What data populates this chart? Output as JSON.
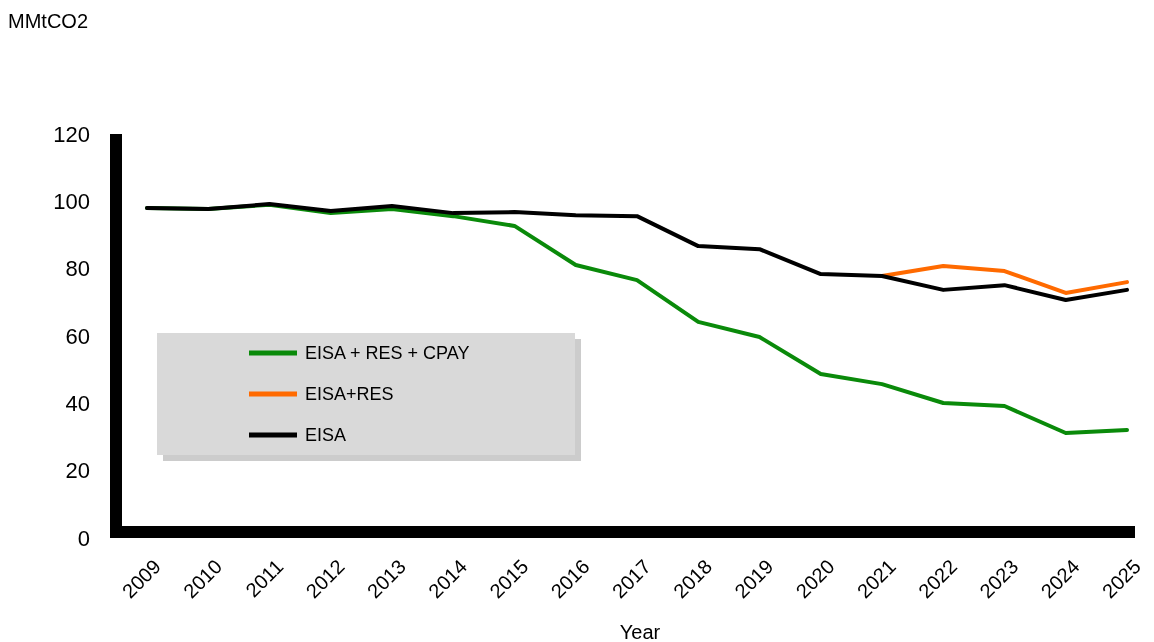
{
  "chart_data": {
    "type": "line",
    "ylabel": "MMtCO2",
    "xlabel": "Year",
    "categories": [
      "2009",
      "2010",
      "2011",
      "2012",
      "2013",
      "2014",
      "2015",
      "2016",
      "2017",
      "2018",
      "2019",
      "2020",
      "2021",
      "2022",
      "2023",
      "2024",
      "2025"
    ],
    "ylim": [
      0,
      120
    ],
    "yticks": [
      0,
      20,
      40,
      60,
      80,
      100,
      120
    ],
    "grid": false,
    "legend": "bottom left",
    "marker": "none",
    "line_style": "solid",
    "series": [
      {
        "name": "EISA + RES + CPAY",
        "color": "#0a8a0a",
        "values": [
          98,
          97.7,
          99,
          96.5,
          97.7,
          95.6,
          92.7,
          81.1,
          76.6,
          64.2,
          59.7,
          48.7,
          45.7,
          40.1,
          39.2,
          31.2,
          32.1
        ]
      },
      {
        "name": "EISA+RES",
        "color": "#ff6a00",
        "values": [
          null,
          null,
          null,
          null,
          null,
          null,
          null,
          null,
          null,
          null,
          null,
          null,
          77.8,
          80.8,
          79.3,
          72.8,
          76.0
        ]
      },
      {
        "name": "EISA",
        "color": "#000000",
        "values": [
          98,
          97.7,
          99.2,
          97.1,
          98.6,
          96.5,
          96.8,
          95.9,
          95.6,
          86.7,
          85.8,
          78.4,
          77.8,
          73.7,
          75.1,
          70.7,
          73.7
        ]
      }
    ]
  }
}
